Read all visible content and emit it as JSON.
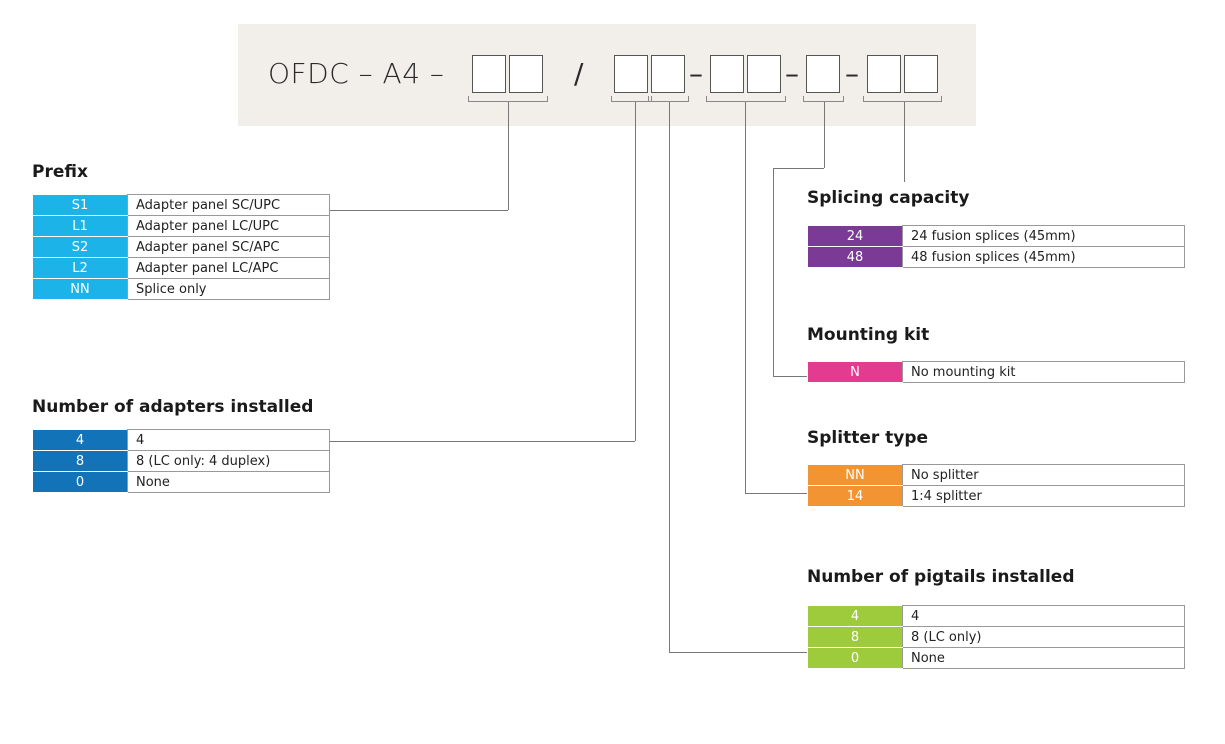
{
  "header": {
    "code_prefix": "OFDC – A4 –",
    "slash": "/",
    "dash": "–"
  },
  "colors": {
    "prefix": "#1bb3e8",
    "adapters": "#1273b8",
    "splicing": "#7b3a96",
    "mounting": "#e23b8f",
    "splitter": "#f29432",
    "pigtails": "#9ecb3b",
    "header_bg": "#f2efeb"
  },
  "prefix": {
    "title": "Prefix",
    "rows": [
      {
        "code": "S1",
        "desc": "Adapter panel SC/UPC"
      },
      {
        "code": "L1",
        "desc": "Adapter panel LC/UPC"
      },
      {
        "code": "S2",
        "desc": "Adapter panel SC/APC"
      },
      {
        "code": "L2",
        "desc": "Adapter panel LC/APC"
      },
      {
        "code": "NN",
        "desc": "Splice only"
      }
    ]
  },
  "adapters": {
    "title": "Number of adapters installed",
    "rows": [
      {
        "code": "4",
        "desc": "4"
      },
      {
        "code": "8",
        "desc": "8 (LC only: 4 duplex)"
      },
      {
        "code": "0",
        "desc": "None"
      }
    ]
  },
  "splicing": {
    "title": "Splicing capacity",
    "rows": [
      {
        "code": "24",
        "desc": "24 fusion splices (45mm)"
      },
      {
        "code": "48",
        "desc": "48 fusion splices (45mm)"
      }
    ]
  },
  "mounting": {
    "title": "Mounting kit",
    "rows": [
      {
        "code": "N",
        "desc": "No mounting kit"
      }
    ]
  },
  "splitter": {
    "title": "Splitter type",
    "rows": [
      {
        "code": "NN",
        "desc": "No splitter"
      },
      {
        "code": "14",
        "desc": "1:4 splitter"
      }
    ]
  },
  "pigtails": {
    "title": "Number of pigtails installed",
    "rows": [
      {
        "code": "4",
        "desc": "4"
      },
      {
        "code": "8",
        "desc": "8 (LC only)"
      },
      {
        "code": "0",
        "desc": "None"
      }
    ]
  }
}
